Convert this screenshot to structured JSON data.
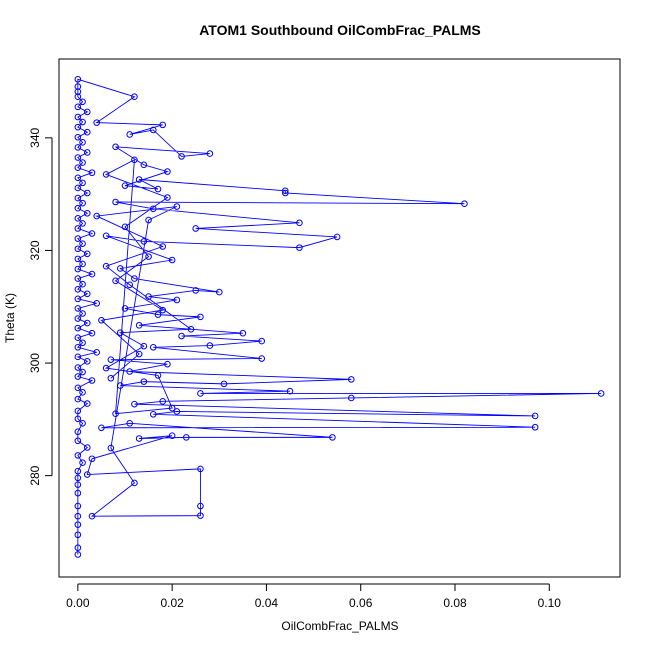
{
  "chart_data": {
    "type": "scatter",
    "title": "ATOM1 Southbound OilCombFrac_PALMS",
    "xlabel": "OilCombFrac_PALMS",
    "ylabel": "Theta (K)",
    "xlim": [
      -0.004,
      0.115
    ],
    "ylim": [
      262,
      354
    ],
    "xticks": [
      0.0,
      0.02,
      0.04,
      0.06,
      0.08,
      0.1
    ],
    "xtick_labels": [
      "0.00",
      "0.02",
      "0.04",
      "0.06",
      "0.08",
      "0.10"
    ],
    "yticks": [
      280,
      300,
      320,
      340
    ],
    "ytick_labels": [
      "280",
      "300",
      "320",
      "340"
    ],
    "grid": false,
    "legend": "none",
    "color": "#0000ff",
    "connected": true,
    "marker": "open-circle",
    "series": [
      {
        "points": [
          [
            0.0,
            266.0
          ],
          [
            0.0,
            267.2
          ],
          [
            0.0,
            269.5
          ],
          [
            0.0,
            271.3
          ],
          [
            0.0,
            272.8
          ],
          [
            0.0,
            274.6
          ],
          [
            0.0,
            276.9
          ],
          [
            0.0,
            278.4
          ],
          [
            0.0,
            279.6
          ],
          [
            0.0,
            280.8
          ],
          [
            0.001,
            282.3
          ],
          [
            0.0,
            283.6
          ],
          [
            0.002,
            285.0
          ],
          [
            0.0,
            286.2
          ],
          [
            0.0,
            287.8
          ],
          [
            0.001,
            289.3
          ],
          [
            0.0,
            290.1
          ],
          [
            0.0,
            291.5
          ],
          [
            0.002,
            292.8
          ],
          [
            0.0,
            293.6
          ],
          [
            0.001,
            294.8
          ],
          [
            0.0,
            295.6
          ],
          [
            0.003,
            296.9
          ],
          [
            0.0,
            297.6
          ],
          [
            0.001,
            298.4
          ],
          [
            0.0,
            299.2
          ],
          [
            0.002,
            300.3
          ],
          [
            0.0,
            301.1
          ],
          [
            0.004,
            301.9
          ],
          [
            0.0,
            302.8
          ],
          [
            0.001,
            303.6
          ],
          [
            0.0,
            304.5
          ],
          [
            0.003,
            305.3
          ],
          [
            0.0,
            306.2
          ],
          [
            0.002,
            307.1
          ],
          [
            0.0,
            307.9
          ],
          [
            0.001,
            308.8
          ],
          [
            0.0,
            309.7
          ],
          [
            0.004,
            310.6
          ],
          [
            0.0,
            311.4
          ],
          [
            0.002,
            312.3
          ],
          [
            0.0,
            313.1
          ],
          [
            0.001,
            314.0
          ],
          [
            0.0,
            315.0
          ],
          [
            0.003,
            315.8
          ],
          [
            0.0,
            316.7
          ],
          [
            0.001,
            317.6
          ],
          [
            0.0,
            318.5
          ],
          [
            0.002,
            319.4
          ],
          [
            0.0,
            320.3
          ],
          [
            0.001,
            321.2
          ],
          [
            0.0,
            322.1
          ],
          [
            0.003,
            323.0
          ],
          [
            0.0,
            323.9
          ],
          [
            0.001,
            324.8
          ],
          [
            0.0,
            325.7
          ],
          [
            0.002,
            326.6
          ],
          [
            0.0,
            327.5
          ],
          [
            0.001,
            328.4
          ],
          [
            0.0,
            329.3
          ],
          [
            0.002,
            330.2
          ],
          [
            0.0,
            331.1
          ],
          [
            0.001,
            332.0
          ],
          [
            0.0,
            332.9
          ],
          [
            0.003,
            333.8
          ],
          [
            0.0,
            334.7
          ],
          [
            0.001,
            335.6
          ],
          [
            0.0,
            336.5
          ],
          [
            0.002,
            337.4
          ],
          [
            0.0,
            338.3
          ],
          [
            0.001,
            339.2
          ],
          [
            0.0,
            340.1
          ],
          [
            0.002,
            341.0
          ],
          [
            0.0,
            341.9
          ],
          [
            0.001,
            342.8
          ],
          [
            0.0,
            343.7
          ],
          [
            0.002,
            344.6
          ],
          [
            0.0,
            345.5
          ],
          [
            0.001,
            346.4
          ],
          [
            0.0,
            347.3
          ],
          [
            0.0,
            348.2
          ],
          [
            0.0,
            349.1
          ],
          [
            0.0,
            350.4
          ],
          [
            0.012,
            347.3
          ],
          [
            0.004,
            342.7
          ],
          [
            0.018,
            342.3
          ],
          [
            0.011,
            340.6
          ],
          [
            0.016,
            341.4
          ],
          [
            0.022,
            336.7
          ],
          [
            0.028,
            337.2
          ],
          [
            0.008,
            338.4
          ],
          [
            0.014,
            335.2
          ],
          [
            0.019,
            334.0
          ],
          [
            0.01,
            331.5
          ],
          [
            0.017,
            330.9
          ],
          [
            0.013,
            332.6
          ],
          [
            0.044,
            330.6
          ],
          [
            0.044,
            330.2
          ],
          [
            0.082,
            328.3
          ],
          [
            0.008,
            328.6
          ],
          [
            0.016,
            327.4
          ],
          [
            0.047,
            324.9
          ],
          [
            0.025,
            323.9
          ],
          [
            0.055,
            322.4
          ],
          [
            0.047,
            320.5
          ],
          [
            0.014,
            321.6
          ],
          [
            0.006,
            322.6
          ],
          [
            0.02,
            318.3
          ],
          [
            0.009,
            316.8
          ],
          [
            0.012,
            315.0
          ],
          [
            0.03,
            312.6
          ],
          [
            0.025,
            312.9
          ],
          [
            0.015,
            311.8
          ],
          [
            0.021,
            311.2
          ],
          [
            0.01,
            309.7
          ],
          [
            0.017,
            308.6
          ],
          [
            0.026,
            308.2
          ],
          [
            0.013,
            306.7
          ],
          [
            0.035,
            305.3
          ],
          [
            0.022,
            304.8
          ],
          [
            0.039,
            303.9
          ],
          [
            0.028,
            303.1
          ],
          [
            0.016,
            302.8
          ],
          [
            0.039,
            300.8
          ],
          [
            0.007,
            300.6
          ],
          [
            0.019,
            299.8
          ],
          [
            0.011,
            298.5
          ],
          [
            0.058,
            297.1
          ],
          [
            0.031,
            296.3
          ],
          [
            0.014,
            296.7
          ],
          [
            0.009,
            296.0
          ],
          [
            0.045,
            295.0
          ],
          [
            0.026,
            294.6
          ],
          [
            0.111,
            294.6
          ],
          [
            0.058,
            293.8
          ],
          [
            0.018,
            293.2
          ],
          [
            0.012,
            292.7
          ],
          [
            0.097,
            290.6
          ],
          [
            0.021,
            291.4
          ],
          [
            0.016,
            290.9
          ],
          [
            0.097,
            288.6
          ],
          [
            0.005,
            288.5
          ],
          [
            0.011,
            289.3
          ],
          [
            0.054,
            286.8
          ],
          [
            0.023,
            286.8
          ],
          [
            0.013,
            286.6
          ],
          [
            0.02,
            287.1
          ],
          [
            0.003,
            283.0
          ],
          [
            0.002,
            280.2
          ],
          [
            0.026,
            281.2
          ],
          [
            0.026,
            274.6
          ],
          [
            0.026,
            272.9
          ],
          [
            0.003,
            272.8
          ],
          [
            0.012,
            278.7
          ],
          [
            0.007,
            284.9
          ],
          [
            0.015,
            325.4
          ],
          [
            0.021,
            327.8
          ],
          [
            0.004,
            326.1
          ],
          [
            0.018,
            320.7
          ],
          [
            0.006,
            317.2
          ],
          [
            0.011,
            313.9
          ],
          [
            0.024,
            306.0
          ],
          [
            0.009,
            305.4
          ],
          [
            0.014,
            303.0
          ],
          [
            0.006,
            299.1
          ],
          [
            0.017,
            297.8
          ],
          [
            0.02,
            292.0
          ],
          [
            0.008,
            291.0
          ],
          [
            0.012,
            336.1
          ],
          [
            0.006,
            333.5
          ],
          [
            0.019,
            329.4
          ],
          [
            0.01,
            324.2
          ],
          [
            0.015,
            318.9
          ],
          [
            0.008,
            314.6
          ],
          [
            0.018,
            309.4
          ],
          [
            0.005,
            307.6
          ],
          [
            0.013,
            301.6
          ],
          [
            0.007,
            297.3
          ]
        ]
      }
    ]
  }
}
